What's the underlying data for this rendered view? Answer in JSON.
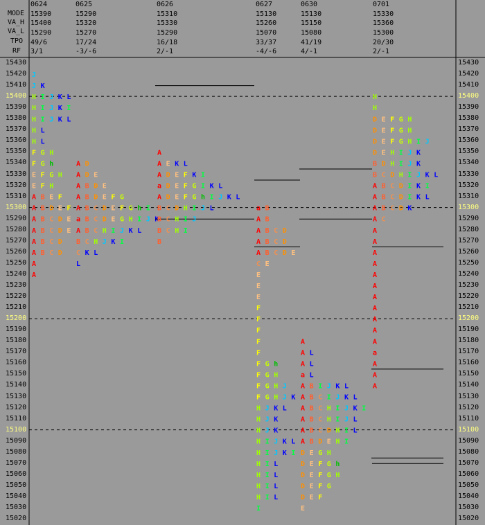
{
  "colors": {
    "background": "#9a9a9a",
    "text": "#000000",
    "highlight_price": "#ffff80",
    "A": "#ff0000",
    "a": "#ff0000",
    "B": "#ff6030",
    "C": "#f09050",
    "D": "#ff9000",
    "E": "#ffc080",
    "F": "#ffff00",
    "G": "#c8ff00",
    "g": "#00c000",
    "h": "#00c000",
    "H": "#a0ff00",
    "I": "#00ff40",
    "i": "#00ff40",
    "J": "#00c8ff",
    "j": "#00c8ff",
    "K": "#0000ff",
    "k": "#0000ff",
    "L": "#0000ff"
  },
  "header": {
    "row_labels": [
      "MODE",
      "VA_H",
      "VA_L",
      "TPO",
      "RF"
    ],
    "columns": [
      {
        "date": "0624",
        "mode": "15390",
        "va_h": "15400",
        "va_l": "15290",
        "tpo": "49/6",
        "rf": "3/1"
      },
      {
        "date": "0625",
        "mode": "15290",
        "va_h": "15320",
        "va_l": "15270",
        "tpo": "17/24",
        "rf": "-3/-6"
      },
      {
        "date": "0626",
        "mode": "15310",
        "va_h": "15330",
        "va_l": "15290",
        "tpo": "16/18",
        "rf": "2/-1"
      },
      {
        "date": "0627",
        "mode": "15130",
        "va_h": "15260",
        "va_l": "15070",
        "tpo": "33/37",
        "rf": "-4/-6"
      },
      {
        "date": "0630",
        "mode": "15130",
        "va_h": "15150",
        "va_l": "15080",
        "tpo": "41/19",
        "rf": "4/-1"
      },
      {
        "date": "0701",
        "mode": "15330",
        "va_h": "15360",
        "va_l": "15300",
        "tpo": "20/30",
        "rf": "2/-1"
      }
    ]
  },
  "chart_data": {
    "type": "table",
    "price_top": 15430,
    "price_bottom": 15020,
    "tick": 10,
    "highlight_prices": [
      15400,
      15300,
      15200,
      15100
    ],
    "sessions": [
      {
        "date": "0624",
        "rows": {
          "15420": "J",
          "15410": "JK",
          "15400": "HIJKL",
          "15390": "HIJKI",
          "15380": "HIJKL",
          "15370": "HL",
          "15360": "HL",
          "15350": "FGH",
          "15340": "FGh",
          "15330": "EFGH",
          "15320": "EFH",
          "15310": "ABEF",
          "15300": "ABDEF",
          "15290": "ABCDE",
          "15280": "ABCDE",
          "15270": "ABCD",
          "15260": "ABCD",
          "15250": "A",
          "15240": "A"
        },
        "value_area_lines": [],
        "dashed_label": ""
      },
      {
        "date": "0625",
        "rows": {
          "15340": "AD",
          "15330": "ADE",
          "15320": "ABDE",
          "15310": "ABDEFG",
          "15300": "ABCDEFGhI",
          "15290": "aBCDEGHIJK",
          "15280": "ABCHIJKL",
          "15270": "BCHJKI",
          "15260": "CKL",
          "15250": "L"
        },
        "value_area_lines": [
          15410,
          15290
        ]
      },
      {
        "date": "0626",
        "rows": {
          "15350": "A",
          "15340": "AEKL",
          "15330": "ADEFKI",
          "15320": "aDEFGIKL",
          "15310": "ADEFGhIJKL",
          "15300": "BCDHIJL",
          "15290": "BCHIJ",
          "15280": "BCHI",
          "15270": "B"
        },
        "value_area_lines": [
          15325,
          15265
        ]
      },
      {
        "date": "0627",
        "rows": {
          "15300": "aB",
          "15290": "AB",
          "15280": "ABCD",
          "15270": "ABCD",
          "15260": "ABCDE",
          "15250": "CE",
          "15240": "E",
          "15230": "E",
          "15220": "E",
          "15210": "F",
          "15200": "F",
          "15190": "F",
          "15180": "F",
          "15170": "F",
          "15160": "FGh",
          "15150": "FGH",
          "15140": "FGHJ",
          "15130": "FGHJK",
          "15120": "HJKL",
          "15110": "HJK",
          "15100": "HJK",
          "15090": "HIJKL",
          "15080": "HIJKI",
          "15070": "HIL",
          "15060": "HIL",
          "15050": "HIL",
          "15040": "HIL",
          "15030": "I"
        },
        "value_area_lines": [
          15335,
          15290
        ]
      },
      {
        "date": "0630",
        "rows": {
          "15180": "A",
          "15170": "AL",
          "15160": "AL",
          "15150": "aL",
          "15140": "ABIJKL",
          "15130": "ABCIJKL",
          "15120": "ABCHIJKI",
          "15110": "ABCHIJL",
          "15100": "ABCDHIL",
          "15090": "ABDEHI",
          "15080": "DEGH",
          "15070": "DEFGh",
          "15060": "DEFGH",
          "15050": "DEFG",
          "15040": "DEF",
          "15030": "E"
        },
        "value_area_lines": [
          15265,
          15070
        ]
      },
      {
        "date": "0701",
        "rows": {
          "15400": "H",
          "15390": "H",
          "15380": "DEFGH",
          "15370": "DEFGH",
          "15360": "DEFGHIJ",
          "15350": "DEHIJK",
          "15340": "BDHIJK",
          "15330": "BCDHIJKL",
          "15320": "ABCDIKI",
          "15310": "ABCDIKL",
          "15300": "ABCDK",
          "15290": "AC",
          "15280": "A",
          "15270": "A",
          "15260": "A",
          "15250": "A",
          "15240": "A",
          "15230": "A",
          "15220": "A",
          "15210": "A",
          "15200": "A",
          "15190": "A",
          "15180": "A",
          "15170": "a",
          "15160": "A",
          "15150": "A",
          "15140": "A"
        },
        "value_area_lines": [
          15155,
          15075
        ]
      }
    ]
  }
}
